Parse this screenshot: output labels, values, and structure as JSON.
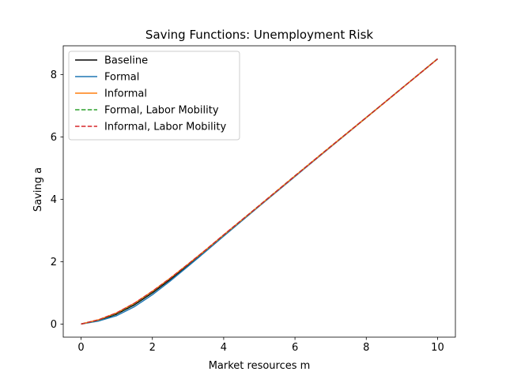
{
  "chart_data": {
    "type": "line",
    "title": "Saving Functions: Unemployment Risk",
    "xlabel": "Market resources m",
    "ylabel": "Saving a",
    "xlim": [
      -0.5,
      10.5
    ],
    "ylim": [
      -0.42,
      8.92
    ],
    "xticks": [
      0,
      2,
      4,
      6,
      8,
      10
    ],
    "yticks": [
      0,
      2,
      4,
      6,
      8
    ],
    "grid": false,
    "legend_position": "top-left",
    "series": [
      {
        "name": "Baseline",
        "color": "#000000",
        "style": "solid",
        "x": [
          0,
          0.5,
          1,
          1.5,
          2,
          2.5,
          3,
          3.5,
          4,
          5,
          6,
          7,
          8,
          9,
          10
        ],
        "y": [
          0,
          0.12,
          0.32,
          0.62,
          1.0,
          1.43,
          1.89,
          2.36,
          2.84,
          3.79,
          4.74,
          5.68,
          6.62,
          7.56,
          8.5
        ]
      },
      {
        "name": "Formal",
        "color": "#1f77b4",
        "style": "solid",
        "x": [
          0,
          0.5,
          1,
          1.5,
          2,
          2.5,
          3,
          3.5,
          4,
          5,
          6,
          7,
          8,
          9,
          10
        ],
        "y": [
          0,
          0.1,
          0.27,
          0.56,
          0.94,
          1.38,
          1.85,
          2.33,
          2.82,
          3.78,
          4.73,
          5.68,
          6.62,
          7.56,
          8.5
        ]
      },
      {
        "name": "Informal",
        "color": "#ff7f0e",
        "style": "solid",
        "x": [
          0,
          0.5,
          1,
          1.5,
          2,
          2.5,
          3,
          3.5,
          4,
          5,
          6,
          7,
          8,
          9,
          10
        ],
        "y": [
          0,
          0.14,
          0.36,
          0.67,
          1.05,
          1.47,
          1.92,
          2.38,
          2.86,
          3.8,
          4.75,
          5.69,
          6.62,
          7.56,
          8.5
        ]
      },
      {
        "name": "Formal, Labor Mobility",
        "color": "#2ca02c",
        "style": "dashed",
        "x": [
          0,
          0.5,
          1,
          1.5,
          2,
          2.5,
          3,
          3.5,
          4,
          5,
          6,
          7,
          8,
          9,
          10
        ],
        "y": [
          0,
          0.13,
          0.34,
          0.65,
          1.03,
          1.46,
          1.91,
          2.37,
          2.85,
          3.8,
          4.75,
          5.69,
          6.62,
          7.56,
          8.5
        ]
      },
      {
        "name": "Informal, Labor Mobility",
        "color": "#d62728",
        "style": "dashed",
        "x": [
          0,
          0.5,
          1,
          1.5,
          2,
          2.5,
          3,
          3.5,
          4,
          5,
          6,
          7,
          8,
          9,
          10
        ],
        "y": [
          0,
          0.14,
          0.36,
          0.67,
          1.05,
          1.47,
          1.92,
          2.38,
          2.86,
          3.8,
          4.75,
          5.69,
          6.62,
          7.56,
          8.5
        ]
      }
    ]
  }
}
